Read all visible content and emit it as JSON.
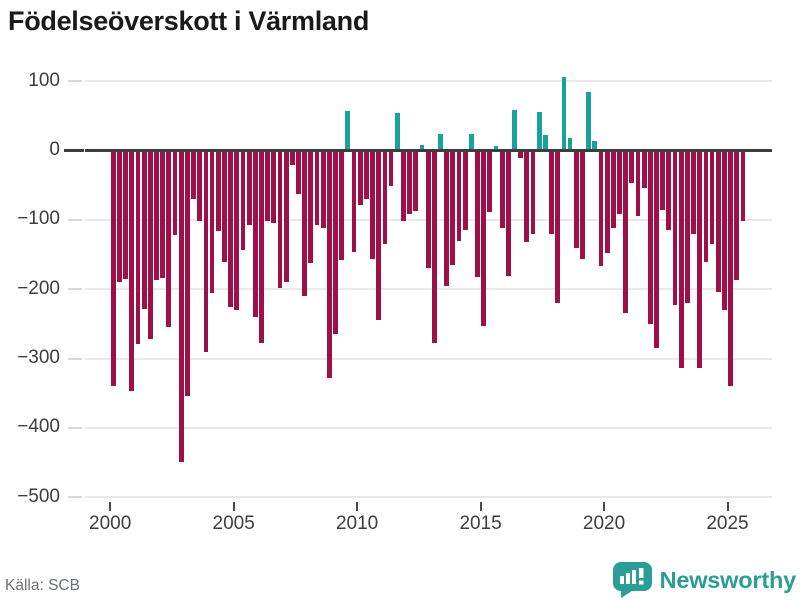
{
  "title": "Födelseöverskott i Värmland",
  "source": "Källa: SCB",
  "logo": {
    "text": "Newsworthy",
    "icon": "bar-chart-speech-bubble-icon"
  },
  "colors": {
    "negative": "#a01048",
    "positive": "#18a29b",
    "zero_line": "#3d3d3d",
    "grid": "#e9e9e9",
    "axis_text": "#3d3d3d",
    "source_text": "#6d7078",
    "logo_teal": "#2a9d95",
    "title_text": "#1a1a1a"
  },
  "chart_data": {
    "type": "bar",
    "title": "Födelseöverskott i Värmland",
    "xlabel": "",
    "ylabel": "",
    "start_period": "2000Q1",
    "frequency": "quarterly",
    "ylim": [
      -500,
      100
    ],
    "grid": true,
    "y_tick_values": [
      100,
      0,
      -100,
      -200,
      -300,
      -400,
      -500
    ],
    "y_tick_labels": [
      "100",
      "0",
      "−100",
      "−200",
      "−300",
      "−400",
      "−500"
    ],
    "x_ticks": [
      {
        "year": 2000,
        "label": "2000"
      },
      {
        "year": 2005,
        "label": "2005"
      },
      {
        "year": 2010,
        "label": "2010"
      },
      {
        "year": 2015,
        "label": "2015"
      },
      {
        "year": 2020,
        "label": "2020"
      },
      {
        "year": 2025,
        "label": "2025"
      }
    ],
    "values": [
      -340,
      -190,
      -185,
      -346,
      -279,
      -228,
      -271,
      -187,
      -184,
      -254,
      -122,
      -449,
      -354,
      -70,
      -101,
      -291,
      -205,
      -116,
      -160,
      -226,
      -230,
      -143,
      -107,
      -240,
      -278,
      -101,
      -104,
      -198,
      -190,
      -21,
      -62,
      -210,
      -162,
      -108,
      -111,
      -328,
      -264,
      -158,
      57,
      -146,
      -79,
      -70,
      -157,
      -245,
      -135,
      -51,
      54,
      -101,
      -92,
      -87,
      8,
      -170,
      -277,
      24,
      -195,
      -165,
      -130,
      -115,
      24,
      -183,
      -253,
      -89,
      7,
      -111,
      -181,
      58,
      -11,
      -132,
      -120,
      56,
      22,
      -120,
      -220,
      106,
      18,
      -141,
      -157,
      84,
      14,
      -166,
      -148,
      -112,
      -92,
      -234,
      -47,
      -94,
      -54,
      -250,
      -285,
      -85,
      -115,
      -223,
      -313,
      -220,
      -120,
      -313,
      -161,
      -135,
      -204,
      -230,
      -339,
      -186,
      -101
    ]
  }
}
